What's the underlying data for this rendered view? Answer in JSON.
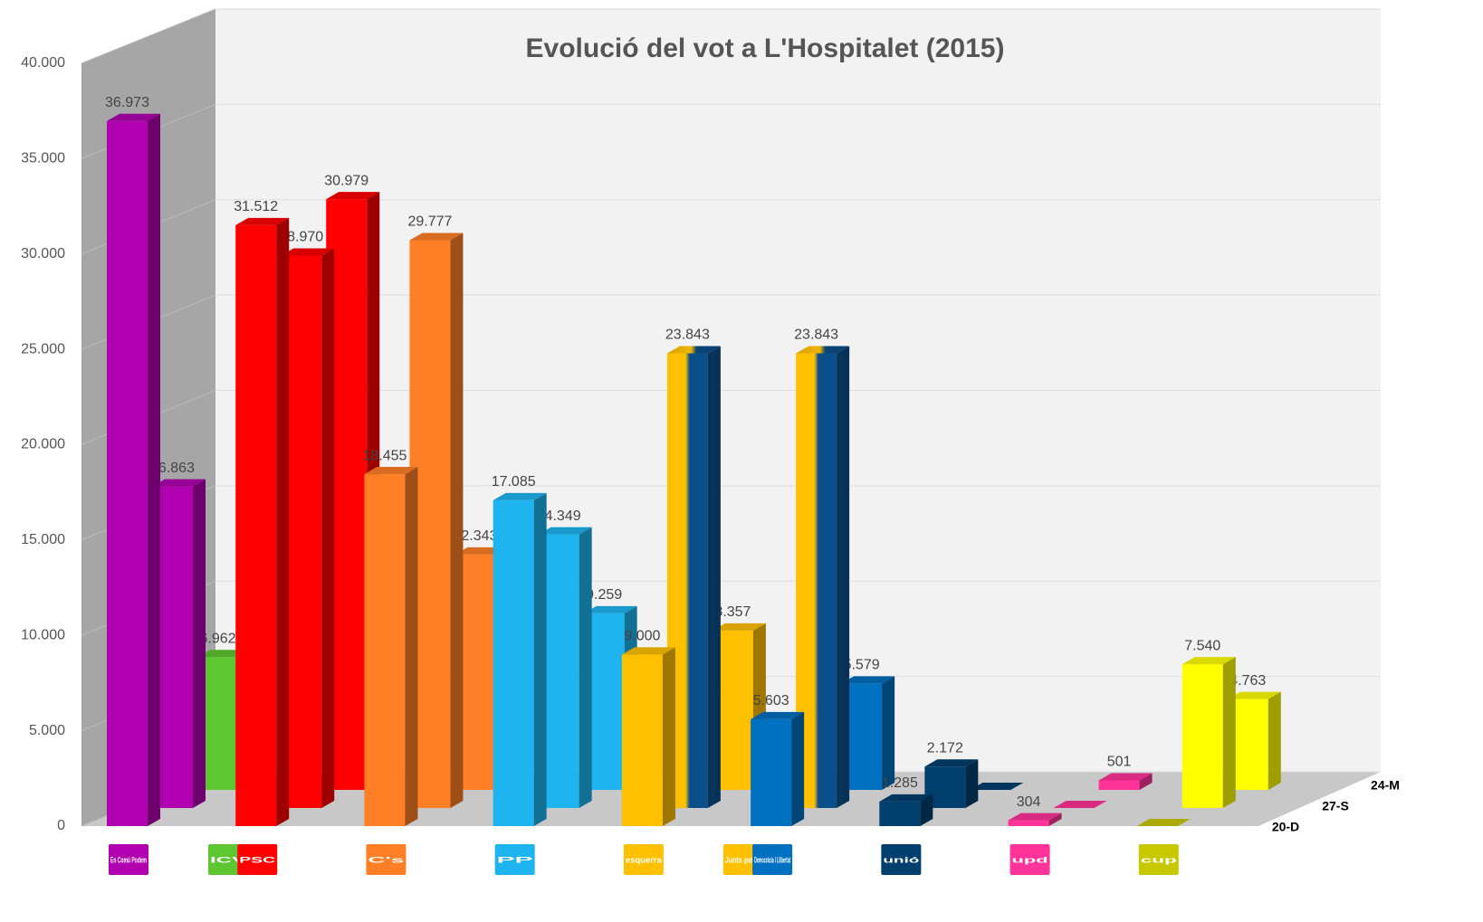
{
  "chart_data": {
    "type": "bar3d",
    "title": "Evolució del vot a L'Hospitalet (2015)",
    "categories": [
      "En Comú Podem",
      "PSC",
      "C's",
      "PP",
      "esquerra",
      "Democràcia i Llibertat",
      "unió",
      "upd",
      "cup"
    ],
    "subcategories": [
      "ICV",
      null,
      null,
      null,
      "Junts pel Sí",
      null,
      null,
      null,
      null
    ],
    "series": [
      {
        "name": "20-D",
        "values": [
          36973,
          31512,
          18455,
          17085,
          9000,
          5603,
          1285,
          304,
          0
        ],
        "value_labels": [
          "36.973",
          "31.512",
          "18.455",
          "17.085",
          "9.000",
          "5.603",
          "1.285",
          "304",
          null
        ],
        "colors": [
          "#b000b0",
          "#ff0000",
          "#ff7f27",
          "#1eb4f0",
          "#ffc000",
          "#0070c0",
          "#003f6e",
          "#ff3399",
          "#c8c800"
        ]
      },
      {
        "name": "27-S",
        "values": [
          16863,
          28970,
          29777,
          14349,
          23843,
          23843,
          2172,
          0,
          7540
        ],
        "value_labels": [
          "16.863",
          "28.970",
          "29.777",
          "14.349",
          "23.843",
          "23.843",
          "2.172",
          null,
          "7.540"
        ],
        "colors": [
          "#b000b0",
          "#ff0000",
          "#ff7f27",
          "#1eb4f0",
          [
            "#ffc000",
            "#0b4f8a"
          ],
          [
            "#ffc000",
            "#0b4f8a"
          ],
          "#003f6e",
          "#ff3399",
          "#ffff00"
        ]
      },
      {
        "name": "24-M",
        "values": [
          6962,
          30979,
          12343,
          9259,
          8357,
          5579,
          0,
          501,
          4763
        ],
        "value_labels": [
          "6.962",
          "30.979",
          "12.343",
          "9.259",
          "8.357",
          "5.579",
          null,
          "501",
          "4.763"
        ],
        "colors": [
          "#5ec630",
          "#ff0000",
          "#ff7f27",
          "#1eb4f0",
          "#ffc000",
          "#0070c0",
          "#003f6e",
          "#ff3399",
          "#ffff00"
        ]
      }
    ],
    "ylim": [
      0,
      40000
    ],
    "yticks": [
      {
        "value": 0,
        "label": "0"
      },
      {
        "value": 5000,
        "label": "5.000"
      },
      {
        "value": 10000,
        "label": "10.000"
      },
      {
        "value": 15000,
        "label": "15.000"
      },
      {
        "value": 20000,
        "label": "20.000"
      },
      {
        "value": 25000,
        "label": "25.000"
      },
      {
        "value": 30000,
        "label": "30.000"
      },
      {
        "value": 35000,
        "label": "35.000"
      },
      {
        "value": 40000,
        "label": "40.000"
      }
    ],
    "grid": true
  }
}
